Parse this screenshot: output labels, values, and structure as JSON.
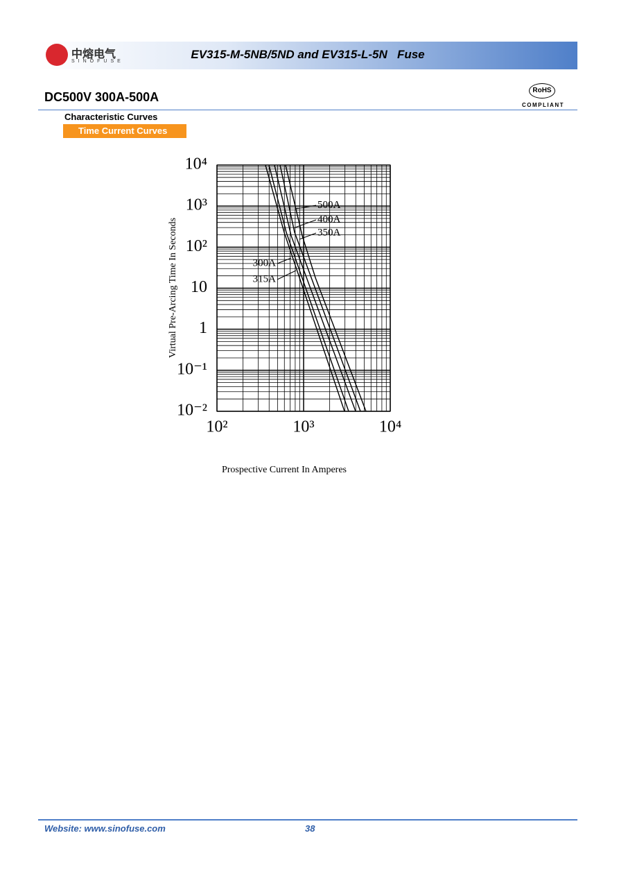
{
  "header": {
    "logo_text": "中熔电气",
    "logo_subtext": "SINOFUSE",
    "title": "EV315-M-5NB/5ND and EV315-L-5N   Fuse"
  },
  "section": {
    "heading": "DC500V 300A-500A",
    "rohs": "RoHS",
    "compliant": "COMPLIANT",
    "subheading": "Characteristic Curves",
    "tab": "Time Current Curves"
  },
  "chart_data": {
    "type": "line",
    "x_label": "Prospective Current In Amperes",
    "y_label": "Virtual Pre-Arcing Time In Seconds",
    "x_log": true,
    "y_log": true,
    "grid": true,
    "color": "#000000",
    "xlim": [
      100,
      10000
    ],
    "xticks": [
      {
        "value": 100,
        "label": "10²"
      },
      {
        "value": 1000,
        "label": "10³"
      },
      {
        "value": 10000,
        "label": "10⁴"
      }
    ],
    "ylim": [
      0.01,
      10000
    ],
    "yticks": [
      {
        "value": 10000,
        "label": "10⁴"
      },
      {
        "value": 1000,
        "label": "10³"
      },
      {
        "value": 100,
        "label": "10²"
      },
      10,
      1,
      {
        "value": 0.1,
        "label": "10⁻¹"
      },
      {
        "value": 0.01,
        "label": "10⁻²"
      }
    ],
    "series": [
      {
        "name": "300A",
        "x": [
          363,
          597,
          2965
        ],
        "values": [
          10000,
          229,
          0.01
        ]
      },
      {
        "name": "315A",
        "x": [
          398,
          631,
          3311
        ],
        "values": [
          10000,
          229,
          0.01
        ]
      },
      {
        "name": "350A",
        "x": [
          461,
          718,
          3981
        ],
        "values": [
          10000,
          190,
          0.01
        ]
      },
      {
        "name": "400A",
        "x": [
          535,
          787,
          4529
        ],
        "values": [
          10000,
          229,
          0.01
        ]
      },
      {
        "name": "500A",
        "x": [
          619,
          964,
          1368,
          5248
        ],
        "values": [
          10000,
          190,
          18,
          0.01
        ]
      }
    ]
  },
  "footer": {
    "website": "Website: www.sinofuse.com",
    "page": "38"
  }
}
